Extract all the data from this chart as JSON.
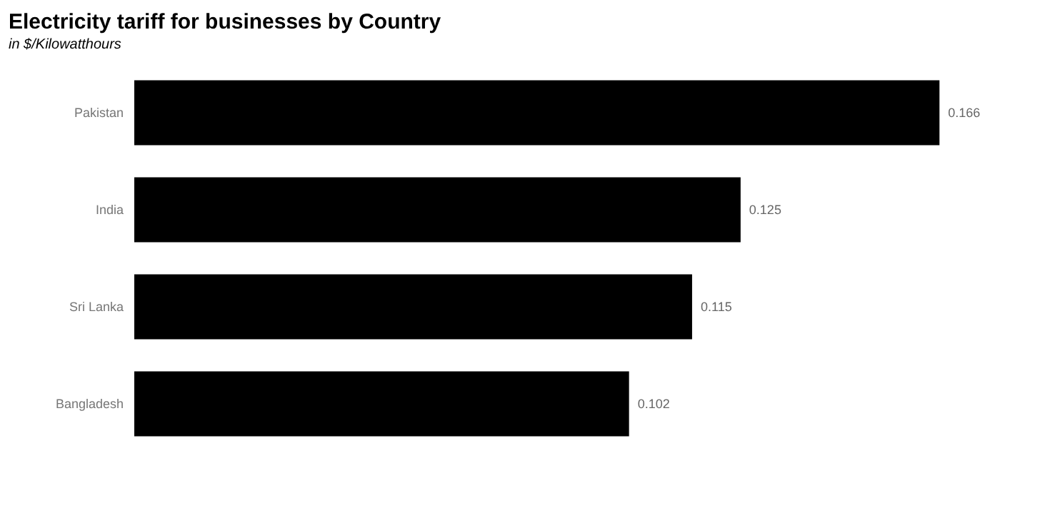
{
  "chart_data": {
    "type": "bar",
    "orientation": "horizontal",
    "title": "Electricity tariff for businesses by Country",
    "subtitle": "in $/Kilowatthours",
    "categories": [
      "Pakistan",
      "India",
      "Sri Lanka",
      "Bangladesh"
    ],
    "values": [
      0.166,
      0.125,
      0.115,
      0.102
    ],
    "color": "#000000",
    "data_labels": true,
    "tick_labels": "y"
  }
}
